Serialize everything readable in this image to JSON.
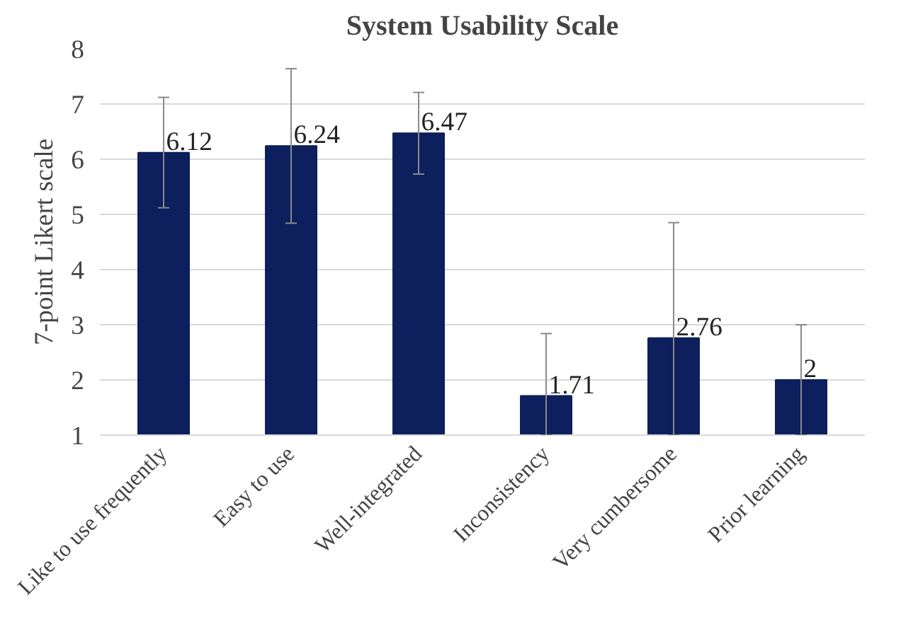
{
  "chart_data": {
    "type": "bar",
    "title": "System Usability Scale",
    "ylabel": "7-point Likert scale",
    "categories": [
      "Like to use frequently",
      "Easy to use",
      "Well-integrated",
      "Inconsistency",
      "Very cumbersome",
      "Prior learning"
    ],
    "values": [
      6.12,
      6.24,
      6.47,
      1.71,
      2.76,
      2
    ],
    "errors": [
      [
        5.12,
        7.12
      ],
      [
        4.84,
        7.64
      ],
      [
        5.73,
        7.21
      ],
      [
        1,
        2.84
      ],
      [
        1,
        4.85
      ],
      [
        1,
        3
      ]
    ],
    "color": "#0d1f5c",
    "ylim": [
      1,
      8
    ],
    "yticks": [
      1,
      2,
      3,
      4,
      5,
      6,
      7,
      8
    ],
    "grid": "y",
    "data_labels": true
  }
}
